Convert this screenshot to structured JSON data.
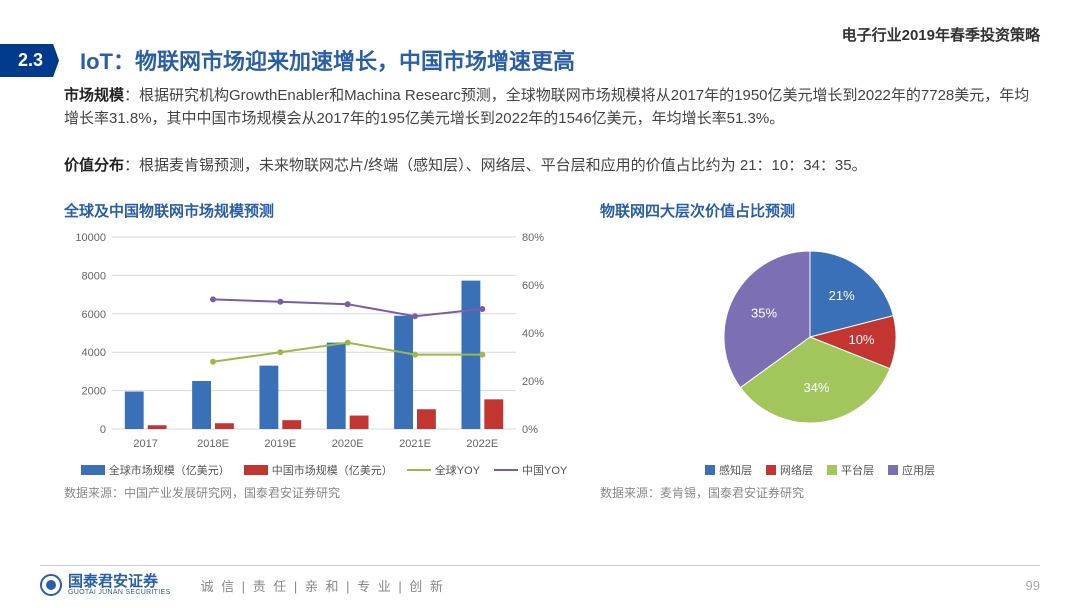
{
  "header_right": "电子行业2019年春季投资策略",
  "section_num": "2.3",
  "title": "IoT：物联网市场迎来加速增长，中国市场增速更高",
  "para1_label": "市场规模",
  "para1_text": "：根据研究机构GrowthEnabler和Machina Researc预测，全球物联网市场规模将从2017年的1950亿美元增长到2022年的7728美元，年均增长率31.8%，其中中国市场规模会从2017年的195亿美元增长到2022年的1546亿美元，年均增长率51.3%。",
  "para2_label": "价值分布",
  "para2_text": "：根据麦肯锡预测，未来物联网芯片/终端（感知层）、网络层、平台层和应用的价值占比约为 21：10：34：35。",
  "bar_chart": {
    "title": "全球及中国物联网市场规模预测",
    "categories": [
      "2017",
      "2018E",
      "2019E",
      "2020E",
      "2021E",
      "2022E"
    ],
    "global_values": [
      1950,
      2500,
      3300,
      4500,
      5900,
      7728
    ],
    "china_values": [
      195,
      300,
      460,
      700,
      1030,
      1546
    ],
    "global_yoy": [
      null,
      28,
      32,
      36,
      31,
      31
    ],
    "china_yoy": [
      null,
      54,
      53,
      52,
      47,
      50
    ],
    "y1_max": 10000,
    "y1_step": 2000,
    "y2_max": 80,
    "y2_step": 20,
    "bar_colors": {
      "global": "#3970b8",
      "china": "#c23531"
    },
    "line_colors": {
      "global_yoy": "#9db84a",
      "china_yoy": "#7d5ba6"
    },
    "grid_color": "#d9d9d9",
    "axis_fontsize": 11,
    "source": "数据来源：中国产业发展研究网，国泰君安证券研究",
    "legend": {
      "global": "全球市场规模（亿美元）",
      "china": "中国市场规模（亿美元）",
      "global_yoy": "全球YOY",
      "china_yoy": "中国YOY"
    }
  },
  "pie_chart": {
    "title": "物联网四大层次价值占比预测",
    "slices": [
      {
        "label": "感知层",
        "value": 21,
        "color": "#3970b8"
      },
      {
        "label": "网络层",
        "value": 10,
        "color": "#c23531"
      },
      {
        "label": "平台层",
        "value": 34,
        "color": "#a2c65c"
      },
      {
        "label": "应用层",
        "value": 35,
        "color": "#7d6fb3"
      }
    ],
    "label_fontsize": 13,
    "source": "数据来源：麦肯锡，国泰君安证券研究"
  },
  "footer": {
    "logo_name": "国泰君安证券",
    "logo_sub": "GUOTAI JUNAN SECURITIES",
    "motto": "诚 信 | 责 任 | 亲 和 | 专 业 | 创 新",
    "page": "99"
  }
}
